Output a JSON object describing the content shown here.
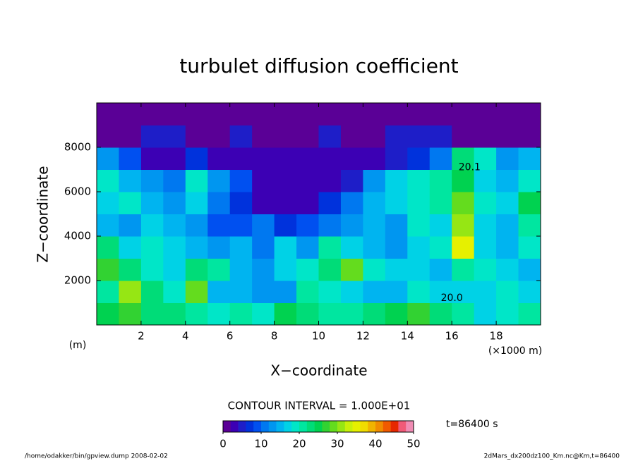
{
  "chart_data": {
    "type": "contour",
    "title": "turbulet diffusion coefficient",
    "xlabel": "X−coordinate",
    "ylabel": "Z−coordinate",
    "x_unit": "(×1000 m)",
    "y_unit": "(m)",
    "contour_interval": "CONTOUR INTERVAL = 1.000E+01",
    "time_label": "t=86400 s",
    "footer_left": "/home/odakker/bin/gpview.dump  2008-02-02",
    "footer_right": "2dMars_dx200dz100_Km.nc@Km,t=86400",
    "xlim": [
      0,
      20
    ],
    "ylim": [
      0,
      10000
    ],
    "xticks": [
      2,
      4,
      6,
      8,
      10,
      12,
      14,
      16,
      18
    ],
    "yticks": [
      2000,
      4000,
      6000,
      8000
    ],
    "x": [
      0.5,
      1.5,
      2.5,
      3.5,
      4.5,
      5.5,
      6.5,
      7.5,
      8.5,
      9.5,
      10.5,
      11.5,
      12.5,
      13.5,
      14.5,
      15.5,
      16.5,
      17.5,
      18.5,
      19.5
    ],
    "y": [
      500,
      1500,
      2500,
      3500,
      4500,
      5500,
      6500,
      7500,
      8500,
      9500
    ],
    "z": [
      [
        24,
        26,
        22,
        22,
        20,
        18,
        20,
        18,
        24,
        22,
        20,
        20,
        22,
        24,
        26,
        22,
        20,
        16,
        18,
        20
      ],
      [
        20,
        30,
        22,
        18,
        28,
        14,
        14,
        12,
        12,
        20,
        18,
        16,
        14,
        14,
        18,
        16,
        16,
        16,
        18,
        16
      ],
      [
        26,
        22,
        18,
        16,
        22,
        20,
        14,
        12,
        16,
        18,
        22,
        28,
        18,
        16,
        16,
        14,
        20,
        18,
        16,
        14
      ],
      [
        22,
        16,
        18,
        16,
        14,
        12,
        14,
        10,
        16,
        12,
        20,
        16,
        14,
        12,
        16,
        18,
        34,
        16,
        14,
        18
      ],
      [
        14,
        12,
        16,
        14,
        12,
        8,
        8,
        10,
        6,
        8,
        10,
        12,
        14,
        12,
        18,
        16,
        30,
        16,
        14,
        20
      ],
      [
        16,
        18,
        14,
        12,
        16,
        10,
        6,
        3,
        3,
        3,
        6,
        10,
        14,
        16,
        18,
        20,
        28,
        18,
        16,
        24
      ],
      [
        18,
        15,
        12,
        10,
        18,
        12,
        8,
        3,
        3,
        3,
        3,
        5,
        12,
        16,
        18,
        20,
        24,
        16,
        15,
        18
      ],
      [
        12,
        8,
        3,
        3,
        6,
        3,
        2,
        2,
        2,
        2,
        3,
        3,
        3,
        4,
        6,
        10,
        22,
        18,
        12,
        14
      ],
      [
        1,
        1,
        4,
        4,
        1,
        1,
        4,
        1,
        1,
        1,
        4,
        1,
        1,
        4,
        4,
        4,
        1,
        1,
        1,
        1
      ],
      [
        1,
        1,
        1,
        1,
        1,
        1,
        1,
        1,
        1,
        1,
        1,
        1,
        1,
        1,
        1,
        1,
        1,
        1,
        1,
        1
      ]
    ],
    "contour_labels": [
      {
        "text": "20.0",
        "x": 16.0,
        "y": 1200
      },
      {
        "text": "20.1",
        "x": 16.8,
        "y": 7100
      }
    ],
    "clim": [
      0,
      50
    ],
    "colorbar_ticks": [
      0,
      10,
      20,
      30,
      40,
      50
    ],
    "colors": [
      "#5a0096",
      "#3c00b4",
      "#1e1ec8",
      "#0032dc",
      "#0050f0",
      "#0078f0",
      "#0096f0",
      "#00b4f0",
      "#00d2e6",
      "#00e6c8",
      "#00e6a0",
      "#00dc78",
      "#00d250",
      "#32d232",
      "#64dc1e",
      "#96e614",
      "#c8f00a",
      "#e6f000",
      "#f0dc00",
      "#f0b400",
      "#f08c00",
      "#f05a00",
      "#e62800",
      "#f05a78",
      "#f08cb4"
    ]
  }
}
